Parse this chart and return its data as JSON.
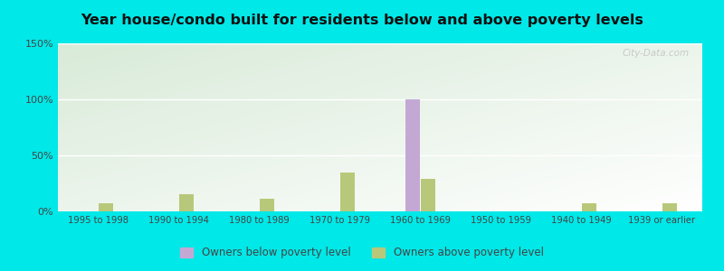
{
  "title": "Year house/condo built for residents below and above poverty levels",
  "categories": [
    "1995 to 1998",
    "1990 to 1994",
    "1980 to 1989",
    "1970 to 1979",
    "1960 to 1969",
    "1950 to 1959",
    "1940 to 1949",
    "1939 or earlier"
  ],
  "below_poverty": [
    0,
    0,
    0,
    0,
    100,
    0,
    0,
    0
  ],
  "above_poverty": [
    7,
    15,
    11,
    35,
    29,
    0,
    7,
    7
  ],
  "below_color": "#c4a8d4",
  "above_color": "#b8c87a",
  "ylim": [
    0,
    150
  ],
  "yticks": [
    0,
    50,
    100,
    150
  ],
  "ytick_labels": [
    "0%",
    "50%",
    "100%",
    "150%"
  ],
  "bar_width": 0.18,
  "outer_bg": "#00e8e8",
  "legend_below": "Owners below poverty level",
  "legend_above": "Owners above poverty level",
  "watermark": "City-Data.com"
}
